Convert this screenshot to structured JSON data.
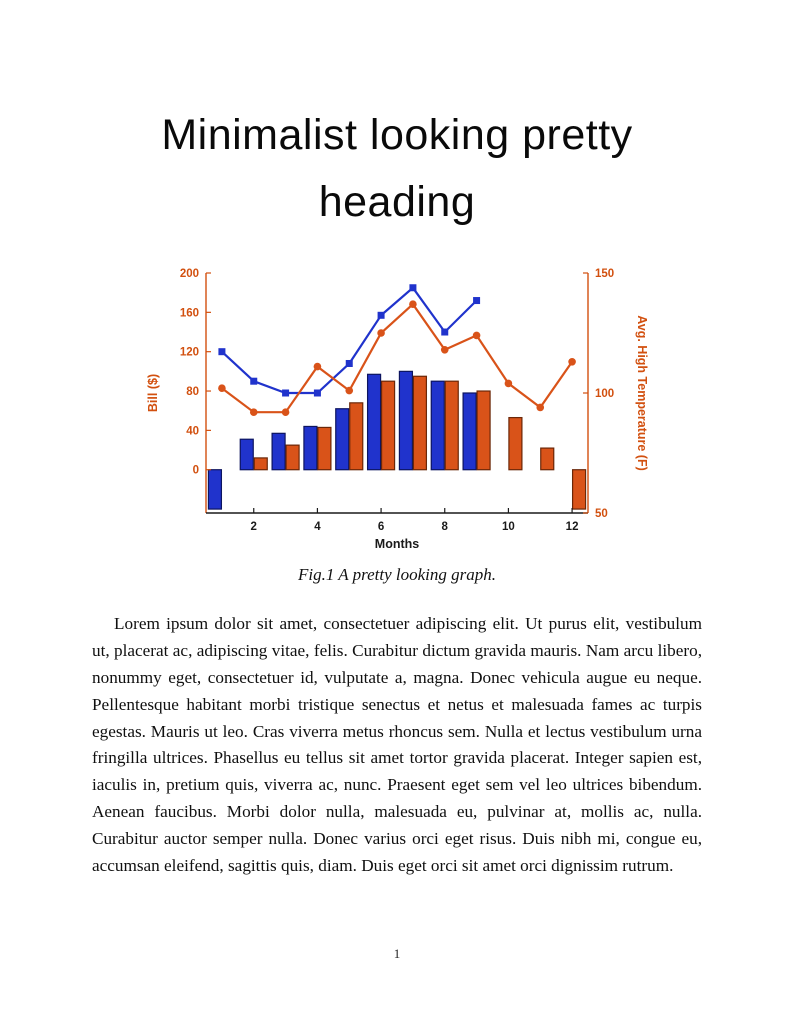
{
  "document": {
    "heading": "Minimalist looking pretty heading",
    "figure_caption": "Fig.1 A pretty looking graph.",
    "body_paragraph": "Lorem ipsum dolor sit amet, consectetuer adipiscing elit. Ut purus elit, vestibulum ut, placerat ac, adipiscing vitae, felis. Curabitur dictum gravida mauris. Nam arcu libero, nonummy eget, consectetuer id, vulputate a, magna. Donec vehicula augue eu neque. Pellentesque habitant morbi tristique senectus et netus et malesuada fames ac turpis egestas. Mauris ut leo. Cras viverra metus rhoncus sem. Nulla et lectus vestibulum urna fringilla ultrices. Phasellus eu tellus sit amet tortor gravida placerat. Integer sapien est, iaculis in, pretium quis, viverra ac, nunc. Praesent eget sem vel leo ultrices bibendum. Aenean faucibus. Morbi dolor nulla, malesuada eu, pulvinar at, mollis ac, nulla. Curabitur auctor semper nulla. Donec varius orci eget risus. Duis nibh mi, congue eu, accumsan eleifend, sagittis quis, diam. Duis eget orci sit amet orci dignissim rutrum.",
    "page_number": "1"
  },
  "chart_data": {
    "type": "bar",
    "subtype": "grouped bars with two overlaid lines, dual y-axis",
    "months": [
      1,
      2,
      3,
      4,
      5,
      6,
      7,
      8,
      9,
      10,
      11,
      12
    ],
    "x_axis": {
      "label": "Months",
      "ticks": [
        2,
        4,
        6,
        8,
        10,
        12
      ],
      "range": [
        0.5,
        12.5
      ],
      "color": "#1a1a1a"
    },
    "left_axis": {
      "label": "Bill ($)",
      "ticks": [
        0,
        40,
        80,
        120,
        160,
        200
      ],
      "range": [
        -44,
        200
      ],
      "color": "#d2500f"
    },
    "right_axis": {
      "label": "Avg. High Temperature (F)",
      "ticks": [
        50,
        100,
        150
      ],
      "range": [
        50,
        150
      ],
      "color": "#d2500f"
    },
    "grid": false,
    "legend": false,
    "series": [
      {
        "name": "blue-bars",
        "type": "bar",
        "axis": "left",
        "color": "#2033cc",
        "edge": "#0d1560",
        "values": [
          -40,
          31,
          37,
          44,
          62,
          97,
          100,
          90,
          78,
          null,
          null,
          null
        ]
      },
      {
        "name": "orange-bars",
        "type": "bar",
        "axis": "left",
        "color": "#d95319",
        "edge": "#6b2708",
        "values": [
          null,
          12,
          25,
          43,
          68,
          90,
          95,
          90,
          80,
          53,
          22,
          -40
        ]
      },
      {
        "name": "blue-line",
        "type": "line",
        "axis": "left",
        "marker": "square",
        "color": "#2033cc",
        "values": [
          120,
          90,
          78,
          78,
          108,
          157,
          185,
          140,
          172,
          null,
          null,
          null
        ]
      },
      {
        "name": "orange-line",
        "type": "line",
        "axis": "right",
        "marker": "circle",
        "color": "#d95319",
        "values": [
          102,
          92,
          92,
          111,
          101,
          125,
          137,
          118,
          124,
          104,
          94,
          113
        ]
      }
    ]
  }
}
